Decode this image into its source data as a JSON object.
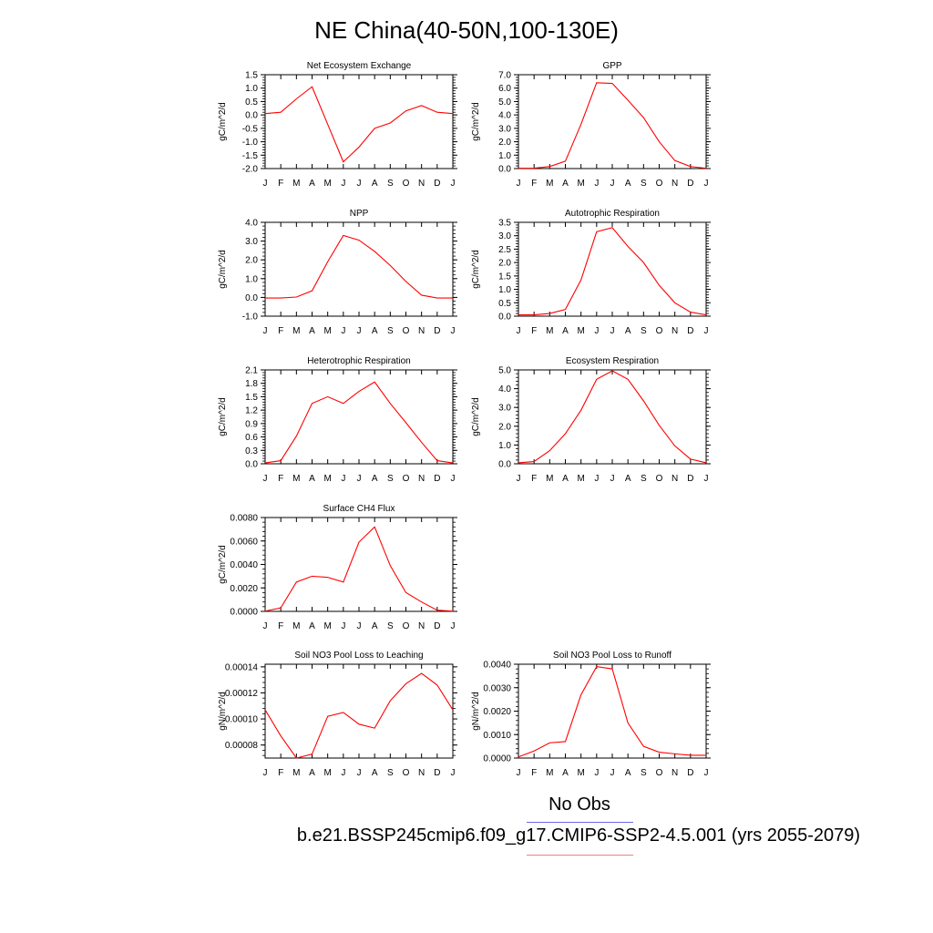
{
  "title": "NE China(40-50N,100-130E)",
  "legend": {
    "obs_label": "No Obs",
    "case_label": "b.e21.BSSP245cmip6.f09_g17.CMIP6-SSP2-4.5.001 (yrs 2055-2079)",
    "obs_color": "#6a6ae8",
    "case_color": "#f08080"
  },
  "line_color": "#ff0000",
  "chart_data": [
    {
      "type": "line",
      "title": "Net Ecosystem Exchange",
      "ylabel": "gC/m^2/d",
      "categories": [
        "J",
        "F",
        "M",
        "A",
        "M",
        "J",
        "J",
        "A",
        "S",
        "O",
        "N",
        "D",
        "J"
      ],
      "values": [
        0.05,
        0.1,
        0.6,
        1.05,
        -0.35,
        -1.75,
        -1.2,
        -0.5,
        -0.3,
        0.15,
        0.35,
        0.1,
        0.05
      ],
      "ylim": [
        -2.0,
        1.5
      ],
      "yticks": [
        -2.0,
        -1.5,
        -1.0,
        -0.5,
        0.0,
        0.5,
        1.0,
        1.5
      ],
      "ytick_labels": [
        "-2.0",
        "-1.5",
        "-1.0",
        "-0.5",
        "0.0",
        "0.5",
        "1.0",
        "1.5"
      ]
    },
    {
      "type": "line",
      "title": "GPP",
      "ylabel": "gC/m^2/d",
      "categories": [
        "J",
        "F",
        "M",
        "A",
        "M",
        "J",
        "J",
        "A",
        "S",
        "O",
        "N",
        "D",
        "J"
      ],
      "values": [
        0.02,
        0.03,
        0.15,
        0.55,
        3.3,
        6.4,
        6.35,
        5.1,
        3.8,
        2.0,
        0.6,
        0.15,
        0.02
      ],
      "ylim": [
        0.0,
        7.0
      ],
      "yticks": [
        0,
        1,
        2,
        3,
        4,
        5,
        6,
        7
      ],
      "ytick_labels": [
        "0.0",
        "1.0",
        "2.0",
        "3.0",
        "4.0",
        "5.0",
        "6.0",
        "7.0"
      ]
    },
    {
      "type": "line",
      "title": "NPP",
      "ylabel": "gC/m^2/d",
      "categories": [
        "J",
        "F",
        "M",
        "A",
        "M",
        "J",
        "J",
        "A",
        "S",
        "O",
        "N",
        "D",
        "J"
      ],
      "values": [
        -0.03,
        -0.03,
        0.02,
        0.35,
        1.9,
        3.3,
        3.05,
        2.45,
        1.7,
        0.85,
        0.12,
        -0.03,
        -0.03
      ],
      "ylim": [
        -1.0,
        4.0
      ],
      "yticks": [
        -1,
        0,
        1,
        2,
        3,
        4
      ],
      "ytick_labels": [
        "-1.0",
        "0.0",
        "1.0",
        "2.0",
        "3.0",
        "4.0"
      ]
    },
    {
      "type": "line",
      "title": "Autotrophic Respiration",
      "ylabel": "gC/m^2/d",
      "categories": [
        "J",
        "F",
        "M",
        "A",
        "M",
        "J",
        "J",
        "A",
        "S",
        "O",
        "N",
        "D",
        "J"
      ],
      "values": [
        0.05,
        0.05,
        0.1,
        0.25,
        1.35,
        3.15,
        3.3,
        2.6,
        2.0,
        1.15,
        0.5,
        0.15,
        0.05
      ],
      "ylim": [
        0.0,
        3.5
      ],
      "yticks": [
        0,
        0.5,
        1,
        1.5,
        2,
        2.5,
        3,
        3.5
      ],
      "ytick_labels": [
        "0.0",
        "0.5",
        "1.0",
        "1.5",
        "2.0",
        "2.5",
        "3.0",
        "3.5"
      ]
    },
    {
      "type": "line",
      "title": "Heterotrophic Respiration",
      "ylabel": "gC/m^2/d",
      "categories": [
        "J",
        "F",
        "M",
        "A",
        "M",
        "J",
        "J",
        "A",
        "S",
        "O",
        "N",
        "D",
        "J"
      ],
      "values": [
        0.02,
        0.07,
        0.62,
        1.35,
        1.5,
        1.35,
        1.62,
        1.83,
        1.35,
        0.92,
        0.48,
        0.07,
        0.02
      ],
      "ylim": [
        0.0,
        2.1
      ],
      "yticks": [
        0,
        0.3,
        0.6,
        0.9,
        1.2,
        1.5,
        1.8,
        2.1
      ],
      "ytick_labels": [
        "0.0",
        "0.3",
        "0.6",
        "0.9",
        "1.2",
        "1.5",
        "1.8",
        "2.1"
      ]
    },
    {
      "type": "line",
      "title": "Ecosystem Respiration",
      "ylabel": "gC/m^2/d",
      "categories": [
        "J",
        "F",
        "M",
        "A",
        "M",
        "J",
        "J",
        "A",
        "S",
        "O",
        "N",
        "D",
        "J"
      ],
      "values": [
        0.05,
        0.12,
        0.7,
        1.6,
        2.85,
        4.5,
        4.95,
        4.5,
        3.35,
        2.05,
        0.95,
        0.25,
        0.05
      ],
      "ylim": [
        0.0,
        5.0
      ],
      "yticks": [
        0,
        1,
        2,
        3,
        4,
        5
      ],
      "ytick_labels": [
        "0.0",
        "1.0",
        "2.0",
        "3.0",
        "4.0",
        "5.0"
      ]
    },
    {
      "type": "line",
      "title": "Surface CH4 Flux",
      "ylabel": "gC/m^2/d",
      "categories": [
        "J",
        "F",
        "M",
        "A",
        "M",
        "J",
        "J",
        "A",
        "S",
        "O",
        "N",
        "D",
        "J"
      ],
      "values": [
        2e-05,
        0.0003,
        0.0025,
        0.003,
        0.0029,
        0.0025,
        0.0059,
        0.0072,
        0.0039,
        0.0016,
        0.0008,
        0.0001,
        2e-05
      ],
      "ylim": [
        0.0,
        0.008
      ],
      "yticks": [
        0,
        0.002,
        0.004,
        0.006,
        0.008
      ],
      "ytick_labels": [
        "0.0000",
        "0.0020",
        "0.0040",
        "0.0060",
        "0.0080"
      ]
    },
    {
      "type": "line",
      "title": "Soil NO3 Pool Loss to Leaching",
      "ylabel": "gN/m^2/d",
      "categories": [
        "J",
        "F",
        "M",
        "A",
        "M",
        "J",
        "J",
        "A",
        "S",
        "O",
        "N",
        "D",
        "J"
      ],
      "values": [
        0.000107,
        8.7e-05,
        7e-05,
        7.3e-05,
        0.000102,
        0.000105,
        9.6e-05,
        9.3e-05,
        0.000114,
        0.000127,
        0.000135,
        0.000126,
        0.000107
      ],
      "ylim": [
        7e-05,
        0.000142
      ],
      "yticks": [
        8e-05,
        0.0001,
        0.00012,
        0.00014
      ],
      "ytick_labels": [
        "0.00008",
        "0.00010",
        "0.00012",
        "0.00014"
      ]
    },
    {
      "type": "line",
      "title": "Soil NO3 Pool Loss to Runoff",
      "ylabel": "gN/m^2/d",
      "categories": [
        "J",
        "F",
        "M",
        "A",
        "M",
        "J",
        "J",
        "A",
        "S",
        "O",
        "N",
        "D",
        "J"
      ],
      "values": [
        5e-05,
        0.0003,
        0.00065,
        0.0007,
        0.0027,
        0.0039,
        0.0038,
        0.0015,
        0.0005,
        0.00025,
        0.00018,
        0.00012,
        0.00012
      ],
      "ylim": [
        0.0,
        0.004
      ],
      "yticks": [
        0,
        0.001,
        0.002,
        0.003,
        0.004
      ],
      "ytick_labels": [
        "0.0000",
        "0.0010",
        "0.0020",
        "0.0030",
        "0.0040"
      ]
    }
  ]
}
